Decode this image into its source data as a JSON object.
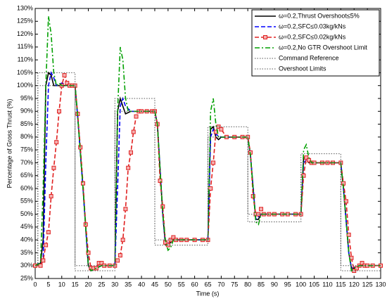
{
  "chart_data": {
    "type": "line",
    "xlabel": "Time (s)",
    "ylabel": "Percentage of Gross Thrust (%)",
    "xlim": [
      0,
      130
    ],
    "ylim": [
      25,
      130
    ],
    "xticks": [
      0,
      5,
      10,
      15,
      20,
      25,
      30,
      35,
      40,
      45,
      50,
      55,
      60,
      65,
      70,
      75,
      80,
      85,
      90,
      95,
      100,
      105,
      110,
      115,
      120,
      125,
      130
    ],
    "yticks": [
      {
        "value": 25,
        "label": "25%"
      },
      {
        "value": 30,
        "label": "30%"
      },
      {
        "value": 35,
        "label": "35%"
      },
      {
        "value": 40,
        "label": "40%"
      },
      {
        "value": 45,
        "label": "45%"
      },
      {
        "value": 50,
        "label": "50%"
      },
      {
        "value": 55,
        "label": "55%"
      },
      {
        "value": 60,
        "label": "60%"
      },
      {
        "value": 65,
        "label": "65%"
      },
      {
        "value": 70,
        "label": "70%"
      },
      {
        "value": 75,
        "label": "75%"
      },
      {
        "value": 80,
        "label": "80%"
      },
      {
        "value": 85,
        "label": "85%"
      },
      {
        "value": 90,
        "label": "90%"
      },
      {
        "value": 95,
        "label": "95%"
      },
      {
        "value": 100,
        "label": "100%"
      },
      {
        "value": 105,
        "label": "105%"
      },
      {
        "value": 110,
        "label": "110%"
      },
      {
        "value": 115,
        "label": "115%"
      },
      {
        "value": 120,
        "label": "120%"
      },
      {
        "value": 125,
        "label": "125%"
      },
      {
        "value": 130,
        "label": "130%"
      }
    ],
    "legend": "upper right",
    "series": [
      {
        "name": "ω=0.2,Thrust Overshoot≤5%",
        "color": "#000000",
        "style": "solid",
        "x": [
          0,
          2,
          3,
          4,
          5,
          6,
          7,
          8,
          10,
          13,
          15,
          16,
          18,
          20,
          21,
          23,
          25,
          28,
          30,
          31,
          32,
          33,
          34,
          36,
          38,
          42,
          45,
          46,
          48,
          49,
          50,
          52,
          55,
          60,
          65,
          66,
          67,
          68,
          69,
          70,
          75,
          80,
          81,
          83,
          84,
          85,
          90,
          100,
          101,
          102,
          103,
          105,
          110,
          115,
          116,
          118,
          119,
          120,
          122,
          125,
          130
        ],
        "values": [
          30,
          31,
          40,
          100,
          105,
          104,
          100,
          100,
          100,
          100,
          100,
          88,
          60,
          30,
          28,
          29,
          30,
          30,
          30,
          90,
          95,
          92,
          89,
          90,
          90,
          90,
          90,
          85,
          50,
          38,
          38,
          40,
          40,
          40,
          40,
          83,
          84,
          80,
          79,
          80,
          80,
          80,
          73,
          48,
          48,
          50,
          50,
          50,
          72,
          72,
          70,
          70,
          70,
          70,
          60,
          35,
          29,
          29,
          30,
          30,
          30
        ]
      },
      {
        "name": "ω=0.2,SFC≤0.03kg/kNs",
        "color": "#0000ff",
        "style": "dashed",
        "x": [
          0,
          3,
          4,
          5,
          6,
          7,
          8,
          10,
          13,
          15,
          16,
          18,
          20,
          21,
          25,
          30,
          31,
          32,
          33,
          34,
          36,
          40,
          45,
          46,
          48,
          49,
          52,
          65,
          66,
          67,
          68,
          70,
          80,
          81,
          83,
          85,
          100,
          101,
          102,
          105,
          115,
          116,
          118,
          119,
          122,
          130
        ],
        "values": [
          30,
          32,
          70,
          100,
          105,
          103,
          100,
          101,
          100,
          100,
          88,
          60,
          30,
          28,
          30,
          30,
          60,
          92,
          95,
          92,
          90,
          90,
          90,
          85,
          50,
          38,
          40,
          40,
          80,
          83,
          81,
          80,
          80,
          73,
          48,
          50,
          50,
          70,
          71,
          70,
          70,
          60,
          35,
          29,
          30,
          30
        ]
      },
      {
        "name": "ω=0.2,SFC≤0.02kg/kNs",
        "color": "#e02020",
        "style": "dashed",
        "marker": "square",
        "x": [
          0,
          2,
          3,
          4,
          5,
          6,
          7,
          8,
          9,
          10,
          11,
          12,
          13,
          14,
          15,
          16,
          17,
          18,
          19,
          20,
          21,
          22,
          23,
          24,
          25,
          26,
          28,
          30,
          31,
          32,
          33,
          34,
          35,
          36,
          37,
          38,
          39,
          40,
          42,
          44,
          45,
          46,
          47,
          48,
          49,
          50,
          51,
          52,
          53,
          55,
          57,
          60,
          63,
          65,
          66,
          67,
          68,
          69,
          70,
          72,
          75,
          78,
          80,
          81,
          82,
          83,
          84,
          85,
          86,
          88,
          90,
          93,
          95,
          98,
          100,
          101,
          102,
          103,
          104,
          105,
          108,
          110,
          112,
          115,
          116,
          117,
          118,
          119,
          120,
          121,
          122,
          123,
          124,
          125,
          127,
          130
        ],
        "values": [
          30,
          30,
          32,
          38,
          43,
          57,
          68,
          78,
          90,
          100,
          104,
          101,
          100,
          100,
          100,
          89,
          76,
          62,
          46,
          35,
          29,
          29,
          29,
          31,
          31,
          30,
          30,
          30,
          32,
          34,
          40,
          52,
          68,
          74,
          82,
          88,
          90,
          90,
          90,
          90,
          90,
          85,
          63,
          53,
          39,
          38,
          40,
          41,
          40,
          40,
          40,
          40,
          40,
          40,
          60,
          70,
          82,
          84,
          83,
          80,
          80,
          80,
          80,
          74,
          57,
          50,
          50,
          52,
          50,
          50,
          50,
          50,
          50,
          50,
          50,
          65,
          72,
          71,
          70,
          70,
          70,
          70,
          70,
          70,
          62,
          55,
          42,
          33,
          28,
          29,
          30,
          31,
          30,
          30,
          30,
          30
        ]
      },
      {
        "name": "ω=0.2,No GTR Overshoot Limit",
        "color": "#00a000",
        "style": "dashdot",
        "x": [
          0,
          2,
          3,
          4,
          5,
          6,
          7,
          8,
          9,
          10,
          13,
          15,
          16,
          18,
          20,
          21,
          25,
          30,
          31,
          32,
          33,
          34,
          35,
          38,
          45,
          46,
          48,
          49,
          50,
          51,
          52,
          65,
          66,
          67,
          68,
          69,
          70,
          80,
          81,
          83,
          84,
          85,
          100,
          101,
          102,
          103,
          104,
          115,
          116,
          118,
          119,
          120,
          122,
          130
        ],
        "values": [
          30,
          31,
          60,
          100,
          127,
          120,
          105,
          100,
          101,
          100,
          100,
          100,
          88,
          60,
          30,
          28,
          30,
          30,
          90,
          115,
          110,
          95,
          90,
          90,
          90,
          85,
          50,
          40,
          36,
          37,
          40,
          40,
          90,
          95,
          85,
          80,
          80,
          80,
          73,
          47,
          46,
          50,
          50,
          75,
          77,
          72,
          70,
          70,
          60,
          35,
          28,
          29,
          30,
          30
        ]
      },
      {
        "name": "Command Reference",
        "color": "#555555",
        "style": "dotted",
        "x": [
          0,
          1,
          1,
          15,
          15,
          30,
          30,
          45,
          45,
          65,
          65,
          80,
          80,
          100,
          100,
          115,
          115,
          130
        ],
        "values": [
          30,
          30,
          100,
          100,
          30,
          30,
          90,
          90,
          40,
          40,
          80,
          80,
          50,
          50,
          70,
          70,
          30,
          30
        ]
      },
      {
        "name": "Overshoot Limits",
        "color": "#555555",
        "style": "dotted",
        "x": [
          0,
          1,
          1,
          15,
          15,
          30,
          30,
          45,
          45,
          65,
          65,
          80,
          80,
          100,
          100,
          115,
          115,
          130
        ],
        "values": [
          30,
          30,
          105,
          105,
          28,
          28,
          95,
          95,
          38,
          38,
          84,
          84,
          47,
          47,
          73.5,
          73.5,
          28,
          28
        ]
      }
    ]
  }
}
